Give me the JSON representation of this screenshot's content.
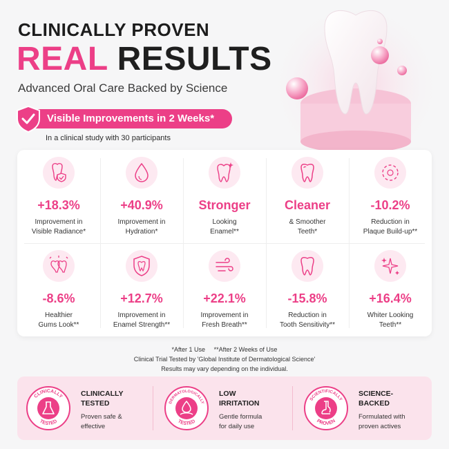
{
  "header": {
    "eyebrow": "CLINICALLY PROVEN",
    "headline_pink": "REAL",
    "headline_dark": "RESULTS",
    "subtitle": "Advanced Oral Care Backed by Science"
  },
  "badge": {
    "label": "Visible Improvements in 2 Weeks*",
    "icon": "shield-check-icon"
  },
  "study_note": "In a clinical study with 30 participants",
  "stats": [
    {
      "icon": "tooth-shield-icon",
      "value": "+18.3%",
      "label1": "Improvement in",
      "label2": "Visible Radiance*"
    },
    {
      "icon": "water-drop-icon",
      "value": "+40.9%",
      "label1": "Improvement in",
      "label2": "Hydration*"
    },
    {
      "icon": "tooth-sparkle-icon",
      "value": "Stronger",
      "label1": "Looking",
      "label2": "Enamel**"
    },
    {
      "icon": "tooth-icon",
      "value": "Cleaner",
      "label1": "& Smoother",
      "label2": "Teeth*"
    },
    {
      "icon": "plaque-circle-icon",
      "value": "-10.2%",
      "label1": "Reduction in",
      "label2": "Plaque Build-up**"
    },
    {
      "icon": "gums-icon",
      "value": "-8.6%",
      "label1": "Healthier",
      "label2": "Gums Look**"
    },
    {
      "icon": "enamel-shield-icon",
      "value": "+12.7%",
      "label1": "Improvement in",
      "label2": "Enamel Strength**"
    },
    {
      "icon": "wind-icon",
      "value": "+22.1%",
      "label1": "Improvement in",
      "label2": "Fresh Breath**"
    },
    {
      "icon": "tooth-outline-icon",
      "value": "-15.8%",
      "label1": "Reduction in",
      "label2": "Tooth Sensitivity**"
    },
    {
      "icon": "sparkles-icon",
      "value": "+16.4%",
      "label1": "Whiter Looking",
      "label2": "Teeth**"
    }
  ],
  "footnotes": {
    "line1": "*After 1 Use     **After 2 Weeks of Use",
    "line2": "Clinical Trial Tested by 'Global Institute of Dermatological Science'",
    "line3": "Results may vary depending on the individual."
  },
  "features": [
    {
      "seal_top": "CLINICALLY",
      "seal_bottom": "TESTED",
      "title1": "CLINICALLY",
      "title2": "TESTED",
      "desc1": "Proven safe &",
      "desc2": "effective"
    },
    {
      "seal_top": "DERMATOLOGICALLY",
      "seal_bottom": "TESTED",
      "title1": "LOW",
      "title2": "IRRITATION",
      "desc1": "Gentle formula",
      "desc2": "for daily use"
    },
    {
      "seal_top": "SCIENTIFICALLY",
      "seal_bottom": "PROVEN",
      "title1": "SCIENCE-",
      "title2": "BACKED",
      "desc1": "Formulated with",
      "desc2": "proven actives"
    }
  ],
  "colors": {
    "accent": "#ec3f87",
    "icon_bg": "#fde9f1",
    "band_bg": "#fbe3ec",
    "text": "#1f1f1f"
  }
}
